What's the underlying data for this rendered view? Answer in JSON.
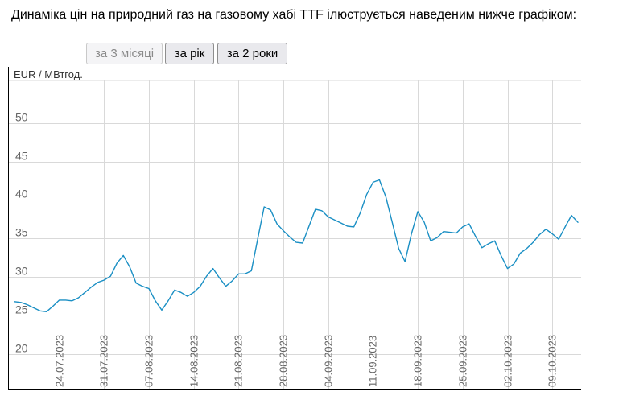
{
  "intro_text": "Динаміка цін на природний газ на газовому хабі TTF ілюструється наведеним нижче графіком:",
  "range_buttons": [
    {
      "label": "за 3 місяці",
      "disabled": true
    },
    {
      "label": "за рік",
      "disabled": false
    },
    {
      "label": "за 2 роки",
      "disabled": false
    }
  ],
  "colors": {
    "line": "#1a8fc4",
    "grid": "#d9d9d9",
    "axis": "#000000",
    "tick_text": "#666666",
    "unit_text": "#333333"
  },
  "chart_data": {
    "type": "line",
    "ylabel": "EUR / МВтгод.",
    "ylim": [
      15.5,
      55.5
    ],
    "yticks": [
      20,
      25,
      30,
      35,
      40,
      45,
      50
    ],
    "grid": true,
    "xlim": [
      "2023-07-17",
      "2023-10-13"
    ],
    "xtick_labels": [
      "24.07.2023",
      "31.07.2023",
      "07.08.2023",
      "14.08.2023",
      "21.08.2023",
      "28.08.2023",
      "04.09.2023",
      "11.09.2023",
      "18.09.2023",
      "25.09.2023",
      "02.10.2023",
      "09.10.2023"
    ],
    "xtick_dates": [
      "2023-07-24",
      "2023-07-31",
      "2023-08-07",
      "2023-08-14",
      "2023-08-21",
      "2023-08-28",
      "2023-09-04",
      "2023-09-11",
      "2023-09-18",
      "2023-09-25",
      "2023-10-02",
      "2023-10-09"
    ],
    "series": [
      {
        "x": [
          "2023-07-17",
          "2023-07-18",
          "2023-07-19",
          "2023-07-20",
          "2023-07-21",
          "2023-07-22",
          "2023-07-23",
          "2023-07-24",
          "2023-07-25",
          "2023-07-26",
          "2023-07-27",
          "2023-07-28",
          "2023-07-29",
          "2023-07-30",
          "2023-07-31",
          "2023-08-01",
          "2023-08-02",
          "2023-08-03",
          "2023-08-04",
          "2023-08-05",
          "2023-08-06",
          "2023-08-07",
          "2023-08-08",
          "2023-08-09",
          "2023-08-10",
          "2023-08-11",
          "2023-08-12",
          "2023-08-13",
          "2023-08-14",
          "2023-08-15",
          "2023-08-16",
          "2023-08-17",
          "2023-08-18",
          "2023-08-19",
          "2023-08-20",
          "2023-08-21",
          "2023-08-22",
          "2023-08-23",
          "2023-08-24",
          "2023-08-25",
          "2023-08-26",
          "2023-08-27",
          "2023-08-28",
          "2023-08-29",
          "2023-08-30",
          "2023-08-31",
          "2023-09-01",
          "2023-09-02",
          "2023-09-03",
          "2023-09-04",
          "2023-09-05",
          "2023-09-06",
          "2023-09-07",
          "2023-09-08",
          "2023-09-09",
          "2023-09-10",
          "2023-09-11",
          "2023-09-12",
          "2023-09-13",
          "2023-09-14",
          "2023-09-15",
          "2023-09-16",
          "2023-09-17",
          "2023-09-18",
          "2023-09-19",
          "2023-09-20",
          "2023-09-21",
          "2023-09-22",
          "2023-09-23",
          "2023-09-24",
          "2023-09-25",
          "2023-09-26",
          "2023-09-27",
          "2023-09-28",
          "2023-09-29",
          "2023-09-30",
          "2023-10-01",
          "2023-10-02",
          "2023-10-03",
          "2023-10-04",
          "2023-10-05",
          "2023-10-06",
          "2023-10-07",
          "2023-10-08",
          "2023-10-09",
          "2023-10-10",
          "2023-10-11",
          "2023-10-12",
          "2023-10-13"
        ],
        "y": [
          26.8,
          26.7,
          26.4,
          26.0,
          25.6,
          25.5,
          26.2,
          27.0,
          27.0,
          26.9,
          27.3,
          28.0,
          28.7,
          29.3,
          29.6,
          30.1,
          31.8,
          32.8,
          31.3,
          29.2,
          28.8,
          28.5,
          26.9,
          25.7,
          26.9,
          28.3,
          28.0,
          27.5,
          28.0,
          28.8,
          30.1,
          31.1,
          29.9,
          28.8,
          29.5,
          30.4,
          30.4,
          30.8,
          35.0,
          39.1,
          38.7,
          36.9,
          36.0,
          35.2,
          34.5,
          34.4,
          36.6,
          38.8,
          38.6,
          37.8,
          37.4,
          37.0,
          36.6,
          36.5,
          38.3,
          40.7,
          42.3,
          42.6,
          40.4,
          37.1,
          33.7,
          32.0,
          35.6,
          38.5,
          37.1,
          34.7,
          35.1,
          35.9,
          35.8,
          35.7,
          36.5,
          36.9,
          35.3,
          33.8,
          34.3,
          34.7,
          32.8,
          31.1,
          31.7,
          33.1,
          33.7,
          34.5,
          35.5,
          36.2,
          35.6,
          34.9,
          36.5,
          38.0,
          37.1
        ]
      }
    ]
  }
}
